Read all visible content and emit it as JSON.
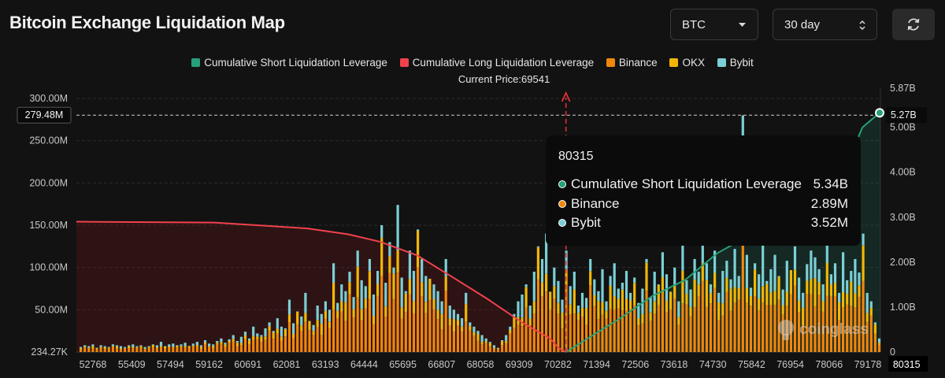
{
  "title": "Bitcoin Exchange Liquidation Map",
  "controls": {
    "coin": "BTC",
    "period": "30 day"
  },
  "legend": [
    {
      "label": "Cumulative Short Liquidation Leverage",
      "color": "#26a17b"
    },
    {
      "label": "Cumulative Long Liquidation Leverage",
      "color": "#f0424d"
    },
    {
      "label": "Binance",
      "color": "#f0870c"
    },
    {
      "label": "OKX",
      "color": "#f2b705"
    },
    {
      "label": "Bybit",
      "color": "#7ccfd6"
    }
  ],
  "current_price_label": "Current Price:69541",
  "tooltip": {
    "title": "80315",
    "rows": [
      {
        "label": "Cumulative Short Liquidation Leverage",
        "value": "5.34B",
        "color": "#26a17b"
      },
      {
        "label": "Binance",
        "value": "2.89M",
        "color": "#f0870c"
      },
      {
        "label": "Bybit",
        "value": "3.52M",
        "color": "#7ccfd6"
      }
    ]
  },
  "watermark": "coinglass",
  "chart_data": {
    "type": "bar",
    "x_ticks": [
      "52768",
      "55409",
      "57494",
      "59162",
      "60691",
      "62081",
      "63193",
      "64444",
      "65695",
      "66807",
      "68058",
      "69309",
      "70282",
      "71394",
      "72506",
      "73618",
      "74730",
      "75842",
      "76954",
      "78066",
      "79178",
      "80315"
    ],
    "left_axis": {
      "ticks": [
        "234.27K",
        "50.00M",
        "100.00M",
        "150.00M",
        "200.00M",
        "250.00M",
        "300.00M"
      ],
      "range": [
        0,
        300000000
      ]
    },
    "right_axis": {
      "ticks": [
        "0",
        "1.00B",
        "2.00B",
        "3.00B",
        "4.00B",
        "5.00B",
        "5.87B"
      ],
      "range": [
        0,
        5870000000
      ]
    },
    "crosshair": {
      "left_label": "279.48M",
      "right_label": "5.27B",
      "x_label": "80315"
    },
    "current_price": 69541,
    "long_cumulative": {
      "name": "Cumulative Long Liquidation Leverage",
      "x": [
        52768,
        57494,
        60691,
        62081,
        63193,
        64444,
        65695,
        66807,
        68058,
        69000,
        69309,
        69541
      ],
      "y": [
        2.9,
        2.88,
        2.75,
        2.62,
        2.45,
        2.15,
        1.65,
        1.2,
        0.65,
        0.3,
        0.08,
        0.0
      ]
    },
    "short_cumulative": {
      "name": "Cumulative Short Liquidation Leverage",
      "x": [
        69541,
        70282,
        71394,
        72506,
        73618,
        74730,
        75842,
        76954,
        78066,
        79178,
        79700,
        80315
      ],
      "y": [
        0.0,
        0.3,
        0.75,
        1.25,
        1.6,
        2.2,
        2.6,
        3.2,
        3.6,
        4.2,
        5.0,
        5.34
      ]
    },
    "series": [
      {
        "name": "Binance",
        "color": "#f0870c"
      },
      {
        "name": "OKX",
        "color": "#f2b705"
      },
      {
        "name": "Bybit",
        "color": "#7ccfd6"
      }
    ],
    "bar_count": 200,
    "bar_totals_M": [
      6,
      8,
      7,
      9,
      5,
      8,
      7,
      6,
      9,
      8,
      7,
      6,
      8,
      9,
      7,
      8,
      6,
      7,
      9,
      8,
      12,
      7,
      9,
      10,
      8,
      9,
      11,
      7,
      10,
      12,
      8,
      14,
      10,
      9,
      13,
      16,
      11,
      15,
      20,
      13,
      18,
      24,
      16,
      30,
      22,
      20,
      28,
      35,
      25,
      40,
      30,
      28,
      62,
      34,
      48,
      42,
      70,
      36,
      32,
      55,
      45,
      60,
      50,
      105,
      58,
      80,
      72,
      95,
      65,
      120,
      85,
      78,
      110,
      68,
      96,
      150,
      82,
      130,
      100,
      174,
      88,
      72,
      120,
      96,
      145,
      110,
      90,
      85,
      80,
      72,
      60,
      110,
      55,
      50,
      45,
      40,
      70,
      35,
      30,
      25,
      20,
      16,
      12,
      8,
      5,
      14,
      20,
      30,
      45,
      60,
      68,
      80,
      55,
      95,
      125,
      110,
      140,
      70,
      100,
      84,
      62,
      120,
      78,
      95,
      55,
      70,
      64,
      110,
      86,
      72,
      98,
      60,
      90,
      105,
      75,
      82,
      96,
      70,
      88,
      58,
      75,
      110,
      65,
      95,
      80,
      118,
      92,
      70,
      100,
      60,
      128,
      85,
      74,
      110,
      95,
      140,
      105,
      80,
      120,
      70,
      96,
      108,
      86,
      122,
      90,
      280,
      115,
      76,
      105,
      92,
      130,
      84,
      98,
      115,
      90,
      74,
      108,
      95,
      125,
      88,
      70,
      104,
      120,
      112,
      98,
      80,
      130,
      92,
      105,
      70,
      118,
      85,
      96,
      110,
      94,
      140,
      70,
      60,
      35,
      16
    ]
  }
}
